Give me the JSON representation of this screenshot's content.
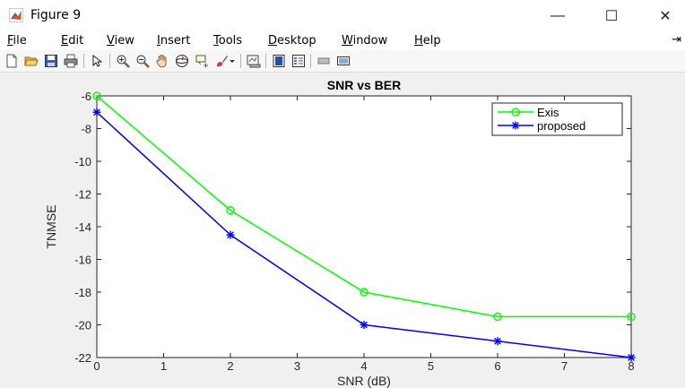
{
  "window": {
    "title": "Figure 9",
    "minimize": "—",
    "maximize": "☐",
    "close": "✕"
  },
  "menu": {
    "items": [
      {
        "label": "File",
        "u": "F",
        "rest": "ile"
      },
      {
        "label": "Edit",
        "u": "E",
        "rest": "dit"
      },
      {
        "label": "View",
        "u": "V",
        "rest": "iew"
      },
      {
        "label": "Insert",
        "u": "I",
        "rest": "nsert"
      },
      {
        "label": "Tools",
        "u": "T",
        "rest": "ools"
      },
      {
        "label": "Desktop",
        "u": "D",
        "rest": "esktop"
      },
      {
        "label": "Window",
        "u": "W",
        "rest": "indow"
      },
      {
        "label": "Help",
        "u": "H",
        "rest": "elp"
      }
    ],
    "pin": "⇥"
  },
  "toolbar": {
    "icons": [
      "new-figure-icon",
      "open-file-icon",
      "save-icon",
      "print-icon",
      "pointer-icon",
      "zoom-in-icon",
      "zoom-out-icon",
      "pan-icon",
      "rotate-3d-icon",
      "data-cursor-icon",
      "brush-icon",
      "link-plot-icon",
      "colorbar-icon",
      "legend-icon",
      "hide-plot-tools-icon",
      "show-plot-tools-icon"
    ]
  },
  "chart_data": {
    "type": "line",
    "title": "SNR vs BER",
    "xlabel": "SNR (dB)",
    "ylabel": "TNMSE",
    "xlim": [
      0,
      8
    ],
    "ylim": [
      -22,
      -6
    ],
    "xticks": [
      "0",
      "1",
      "2",
      "3",
      "4",
      "5",
      "6",
      "7",
      "8"
    ],
    "yticks": [
      "-6",
      "-8",
      "-10",
      "-12",
      "-14",
      "-16",
      "-18",
      "-20",
      "-22"
    ],
    "grid": false,
    "legend_position": "top-right",
    "series": [
      {
        "name": "Exis",
        "color": "#00ff00",
        "marker": "o",
        "x": [
          0,
          2,
          4,
          6,
          8
        ],
        "y": [
          -6,
          -13,
          -18,
          -19.5,
          -19.5
        ]
      },
      {
        "name": "proposed",
        "color": "#0000ff",
        "marker": "*",
        "x": [
          0,
          2,
          4,
          6,
          8
        ],
        "y": [
          -7,
          -14.5,
          -20,
          -21,
          -22
        ]
      }
    ]
  }
}
